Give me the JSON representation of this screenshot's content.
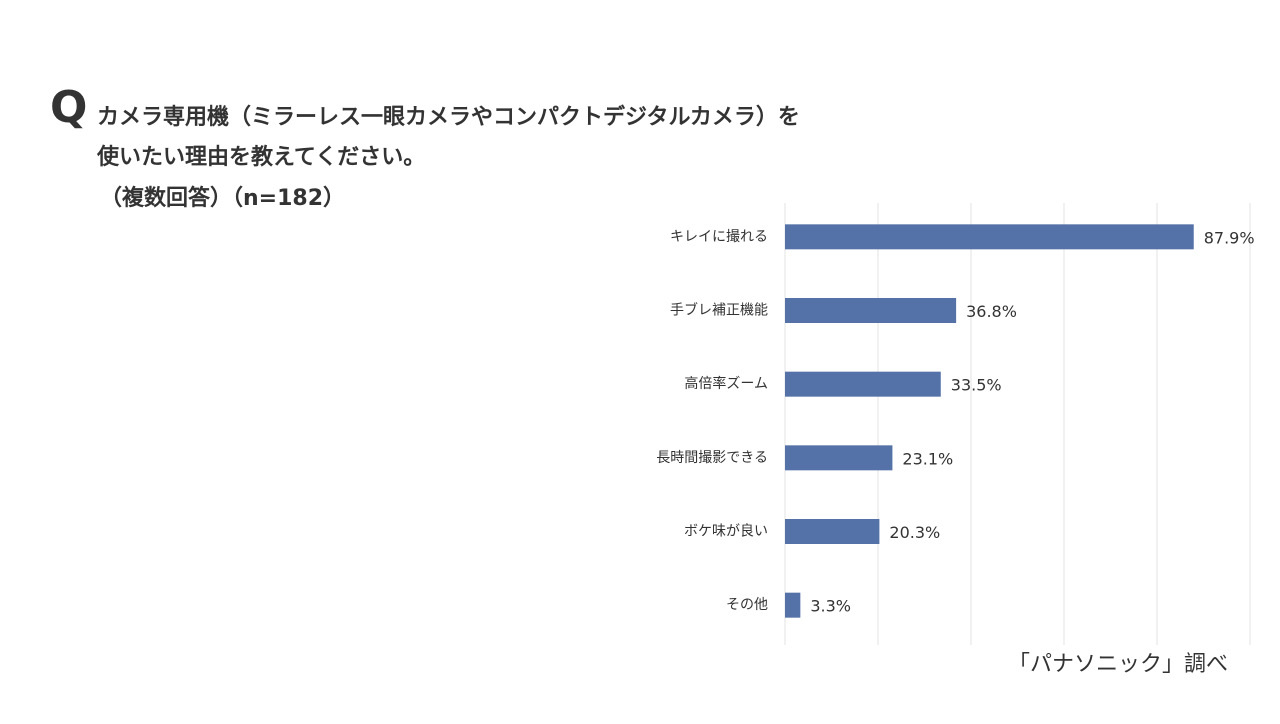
{
  "chart_data": {
    "type": "barh",
    "question_mark": "Q",
    "title": [
      "カメラ専用機（ミラーレス一眼カメラやコンパクトデジタルカメラ）を",
      "使いたい理由を教えてください。"
    ],
    "subtitle": "（複数回答）（n=182）",
    "source": "「パナソニック」調べ",
    "categories": [
      "キレイに撮れる",
      "手ブレ補正機能",
      "高倍率ズーム",
      "長時間撮影できる",
      "ボケ味が良い",
      "その他"
    ],
    "values": [
      87.9,
      36.8,
      33.5,
      23.1,
      20.3,
      3.3
    ],
    "value_labels": [
      "87.9%",
      "36.8%",
      "33.5%",
      "23.1%",
      "20.3%",
      "3.3%"
    ],
    "color": "#5472a8",
    "xlim": [
      0,
      100
    ],
    "xticks": [
      0,
      20,
      40,
      60,
      80,
      100
    ],
    "grid": true
  }
}
